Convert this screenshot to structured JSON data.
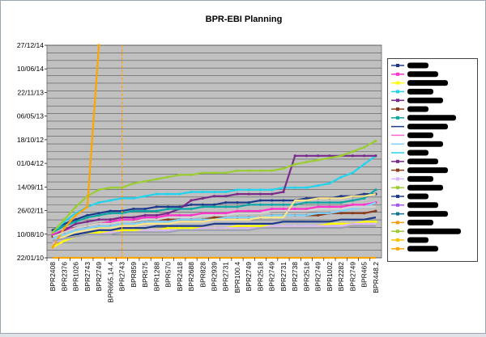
{
  "chart_data": {
    "type": "line",
    "title": "BPR-EBI Planning",
    "xlabel": "",
    "ylabel": "",
    "y_axis_type": "date",
    "y_ticks": [
      "27/12/14",
      "10/06/14",
      "22/11/13",
      "06/05/13",
      "18/10/12",
      "01/04/12",
      "14/09/11",
      "26/02/11",
      "10/08/10",
      "22/01/10"
    ],
    "ylim": [
      "22/01/10",
      "27/12/14"
    ],
    "x_ticks": [
      "BPR2408",
      "BPR2376",
      "BPR1026",
      "BPR2743",
      "BPR2749",
      "BPR665.14.4",
      "BPR2743",
      "BPR859",
      "BPR575",
      "BPR1288",
      "BPR570",
      "BPR2418",
      "BPR2688",
      "BPR828",
      "BPR2939",
      "BPR2731",
      "BPR100.4",
      "BPR2749",
      "BPR2518",
      "BPR2749",
      "BPR2731",
      "BPR2738",
      "BPR2518",
      "BPR2749",
      "BPR1002",
      "BPR2282",
      "BPR2749",
      "BPR465",
      "BPR448.2"
    ],
    "grid": true,
    "legend_position": "right",
    "plot_background": "#c0c0c0",
    "series": [
      {
        "color": "#1f3a8a",
        "marker": "diamond",
        "values": [
          0.13,
          0.16,
          0.18,
          0.2,
          0.21,
          0.22,
          0.22,
          0.23,
          0.23,
          0.24,
          0.24,
          0.24,
          0.25,
          0.25,
          0.25,
          0.26,
          0.26,
          0.26,
          0.27,
          0.27,
          0.27,
          0.27,
          0.28,
          0.28,
          0.28,
          0.29,
          0.29,
          0.3,
          0.3
        ]
      },
      {
        "color": "#ff33cc",
        "marker": "square",
        "values": [
          0.11,
          0.13,
          0.14,
          0.15,
          0.16,
          0.17,
          0.18,
          0.18,
          0.19,
          0.19,
          0.2,
          0.2,
          0.2,
          0.21,
          0.21,
          0.21,
          0.22,
          0.22,
          0.22,
          0.23,
          0.23,
          0.23,
          0.23,
          0.24,
          0.24,
          0.24,
          0.25,
          0.25,
          0.26
        ]
      },
      {
        "color": "#ffff00",
        "marker": "triangle",
        "values": [
          0.05,
          0.08,
          0.1,
          0.11,
          0.12,
          0.12,
          0.13,
          0.13,
          0.13,
          0.13,
          0.14,
          0.14,
          0.14,
          0.14,
          0.14,
          0.14,
          0.15,
          0.15,
          0.15,
          0.15,
          0.15,
          0.15,
          0.15,
          0.15,
          0.16,
          0.16,
          0.16,
          0.17,
          0.17
        ]
      },
      {
        "color": "#22d3ee",
        "marker": "x",
        "values": [
          0.12,
          0.17,
          0.21,
          0.24,
          0.26,
          0.27,
          0.28,
          0.28,
          0.29,
          0.3,
          0.3,
          0.3,
          0.31,
          0.31,
          0.31,
          0.31,
          0.32,
          0.32,
          0.32,
          0.32,
          0.33,
          0.33,
          0.33,
          0.34,
          0.35,
          0.38,
          0.4,
          0.44,
          0.48
        ]
      },
      {
        "color": "#7a2a8a",
        "marker": "x",
        "values": [
          0.1,
          0.13,
          0.16,
          0.17,
          0.18,
          0.18,
          0.19,
          0.19,
          0.2,
          0.2,
          0.21,
          0.23,
          0.27,
          0.28,
          0.29,
          0.29,
          0.3,
          0.3,
          0.3,
          0.3,
          0.31,
          0.48,
          0.48,
          0.48,
          0.48,
          0.48,
          0.48,
          0.48,
          0.48
        ]
      },
      {
        "color": "#8b3a1a",
        "marker": "circle",
        "values": [
          0.1,
          0.12,
          0.14,
          0.15,
          0.16,
          0.16,
          0.17,
          0.17,
          0.17,
          0.18,
          0.18,
          0.18,
          0.18,
          0.18,
          0.19,
          0.19,
          0.19,
          0.19,
          0.19,
          0.2,
          0.2,
          0.2,
          0.2,
          0.2,
          0.21,
          0.21,
          0.21,
          0.21,
          0.22
        ]
      },
      {
        "color": "#0ea5a5",
        "marker": "plus",
        "values": [
          0.12,
          0.15,
          0.17,
          0.19,
          0.2,
          0.21,
          0.21,
          0.22,
          0.22,
          0.22,
          0.23,
          0.23,
          0.23,
          0.24,
          0.24,
          0.24,
          0.24,
          0.25,
          0.25,
          0.25,
          0.25,
          0.25,
          0.26,
          0.26,
          0.26,
          0.26,
          0.27,
          0.28,
          0.32
        ]
      },
      {
        "color": "#1e3a8a",
        "marker": "none",
        "values": [
          0.08,
          0.1,
          0.11,
          0.12,
          0.13,
          0.13,
          0.14,
          0.14,
          0.14,
          0.15,
          0.15,
          0.15,
          0.15,
          0.15,
          0.16,
          0.16,
          0.16,
          0.16,
          0.16,
          0.16,
          0.17,
          0.17,
          0.17,
          0.17,
          0.17,
          0.18,
          0.18,
          0.18,
          0.19
        ]
      },
      {
        "color": "#7dd3fc",
        "marker": "none",
        "values": [
          0.09,
          0.11,
          0.13,
          0.14,
          0.15,
          0.15,
          0.16,
          0.16,
          0.17,
          0.17,
          0.17,
          0.18,
          0.18,
          0.18,
          0.18,
          0.19,
          0.19,
          0.19,
          0.19,
          0.2,
          0.2,
          0.2,
          0.2,
          0.21,
          0.21,
          0.22,
          0.23,
          0.24,
          0.26
        ]
      },
      {
        "color": "#d8b4fe",
        "marker": "none",
        "values": [
          0.07,
          0.09,
          0.1,
          0.11,
          0.11,
          0.12,
          0.12,
          0.12,
          0.13,
          0.13,
          0.13,
          0.13,
          0.13,
          0.14,
          0.14,
          0.14,
          0.14,
          0.14,
          0.14,
          0.15,
          0.15,
          0.15,
          0.15,
          0.15,
          0.15,
          0.15,
          0.16,
          0.16,
          0.16
        ]
      },
      {
        "color": "#9acd32",
        "marker": "circle",
        "values": [
          0.12,
          0.18,
          0.24,
          0.29,
          0.32,
          0.33,
          0.33,
          0.35,
          0.36,
          0.37,
          0.38,
          0.39,
          0.39,
          0.4,
          0.4,
          0.4,
          0.41,
          0.41,
          0.41,
          0.41,
          0.42,
          0.44,
          0.45,
          0.46,
          0.47,
          0.48,
          0.5,
          0.52,
          0.55
        ]
      },
      {
        "color": "#fde68a",
        "marker": "none",
        "values": [
          0.08,
          0.1,
          0.12,
          0.13,
          0.14,
          0.14,
          0.15,
          0.15,
          0.16,
          0.16,
          0.16,
          0.17,
          0.17,
          0.17,
          0.18,
          0.18,
          0.18,
          0.18,
          0.19,
          0.19,
          0.19,
          0.27,
          0.27,
          0.28,
          0.28,
          0.28,
          0.29,
          0.29,
          0.3
        ]
      },
      {
        "color": "#ffa500",
        "marker": "triangle",
        "values": [
          0.05,
          0.14,
          0.2,
          0.24,
          1.0
        ]
      },
      {
        "color": "#ffa500",
        "marker": "none",
        "values": [
          0.0,
          0.0,
          0.0,
          0.0,
          0.0,
          0.0,
          0.0,
          0.0,
          0.0,
          0.0,
          0.0,
          0.0,
          0.0,
          0.0,
          0.0,
          0.0,
          0.0,
          0.0,
          0.0,
          0.0,
          0.0,
          0.0,
          0.0,
          0.0,
          0.0,
          0.0,
          0.0,
          0.0,
          0.0
        ]
      },
      {
        "color": "#d4d4d4",
        "marker": "none",
        "values": [
          0.1,
          0.12,
          0.14,
          0.15,
          0.16,
          0.16,
          0.17,
          0.17,
          0.18,
          0.18,
          0.19,
          0.19,
          0.19,
          0.2,
          0.2,
          0.2,
          0.21,
          0.21,
          0.21,
          0.22,
          0.22,
          0.22,
          0.22,
          0.23,
          0.23,
          0.23,
          0.24,
          0.24,
          0.24
        ]
      },
      {
        "color": "#9ca3af",
        "marker": "none",
        "values": [
          0.08,
          0.09,
          0.1,
          0.11,
          0.11,
          0.11,
          0.12,
          0.12,
          0.12,
          0.12,
          0.12,
          0.13,
          0.13,
          0.13,
          0.13,
          0.13,
          0.13,
          0.13,
          0.14,
          0.14,
          0.14,
          0.14,
          0.14,
          0.14,
          0.14,
          0.14,
          0.15,
          0.15,
          0.15
        ]
      }
    ],
    "vertical_line": {
      "x": "BPR2743",
      "color": "#ffa500",
      "style": "dashed"
    },
    "legend_markers": [
      "diamond",
      "square",
      "triangle",
      "x",
      "x",
      "circle",
      "plus",
      "none",
      "none",
      "none",
      "none",
      "circle",
      "square",
      "triangle",
      "diamond",
      "square",
      "x",
      "square",
      "triangle",
      "circle",
      "circle",
      "triangle"
    ],
    "legend_colors": [
      "#1f3a8a",
      "#ff33cc",
      "#ffff00",
      "#22d3ee",
      "#7a2a8a",
      "#8b3a1a",
      "#0ea5a5",
      "#1e3a8a",
      "#ff66cc",
      "#7dd3fc",
      "#22d3ee",
      "#7a2a8a",
      "#8b3a1a",
      "#d8b4fe",
      "#9acd32",
      "#1e3a8a",
      "#a855f7",
      "#0e7490",
      "#f59e0b",
      "#9acd32",
      "#ffc000",
      "#ffa500"
    ]
  }
}
